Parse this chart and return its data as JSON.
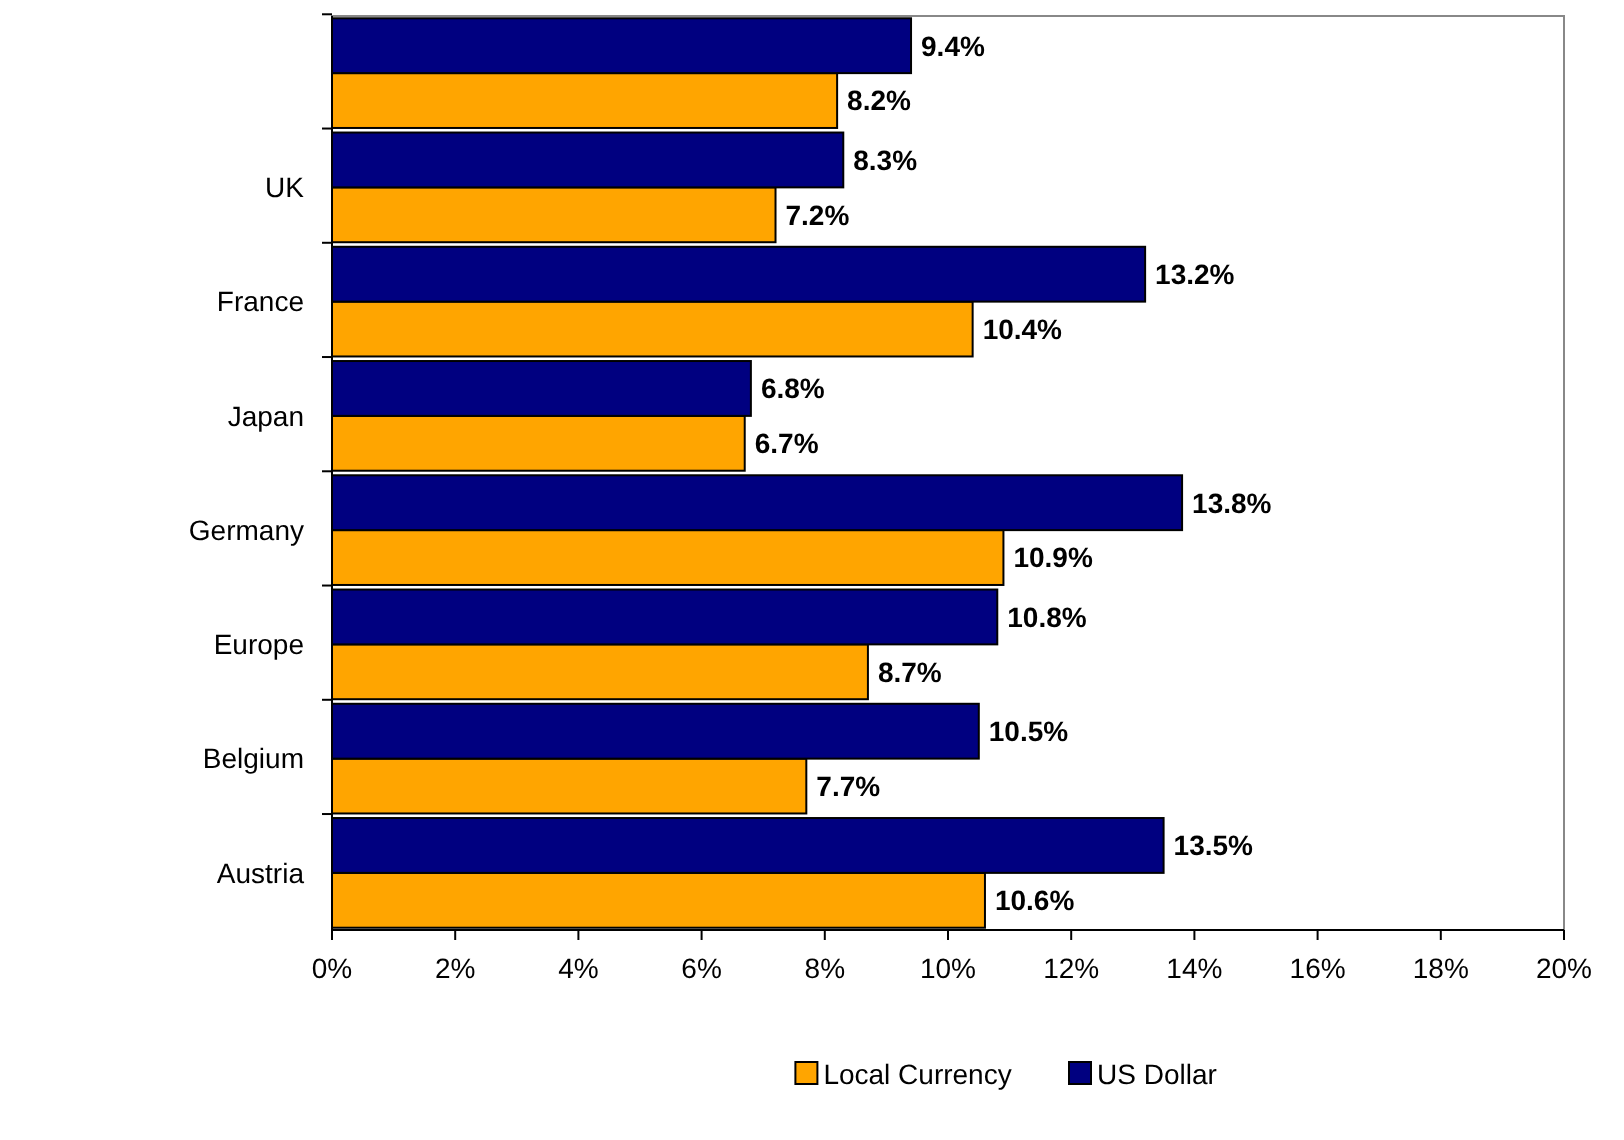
{
  "chart_data": {
    "type": "bar",
    "orientation": "horizontal",
    "categories": [
      null,
      "UK",
      "France",
      "Japan",
      "Germany",
      "Europe",
      "Belgium",
      "Austria"
    ],
    "series": [
      {
        "name": "Local Currency",
        "color": "#ffa500",
        "values": [
          8.2,
          7.2,
          10.4,
          6.7,
          10.9,
          8.7,
          7.7,
          10.6
        ],
        "value_labels": [
          "8.2%",
          "7.2%",
          "10.4%",
          "6.7%",
          "10.9%",
          "8.7%",
          "7.7%",
          "10.6%"
        ]
      },
      {
        "name": "US Dollar",
        "color": "#000080",
        "values": [
          9.4,
          8.3,
          13.2,
          6.8,
          13.8,
          10.8,
          10.5,
          13.5
        ],
        "value_labels": [
          "9.4%",
          "8.3%",
          "13.2%",
          "6.8%",
          "13.8%",
          "10.8%",
          "10.5%",
          "13.5%"
        ]
      }
    ],
    "xlim": [
      0,
      20
    ],
    "xticks": [
      {
        "value": 0,
        "label": "0%"
      },
      {
        "value": 2,
        "label": "2%"
      },
      {
        "value": 4,
        "label": "4%"
      },
      {
        "value": 6,
        "label": "6%"
      },
      {
        "value": 8,
        "label": "8%"
      },
      {
        "value": 10,
        "label": "10%"
      },
      {
        "value": 12,
        "label": "12%"
      },
      {
        "value": 14,
        "label": "14%"
      },
      {
        "value": 16,
        "label": "16%"
      },
      {
        "value": 18,
        "label": "18%"
      },
      {
        "value": 20,
        "label": "20%"
      }
    ],
    "grid": false,
    "legend": "bottom"
  }
}
